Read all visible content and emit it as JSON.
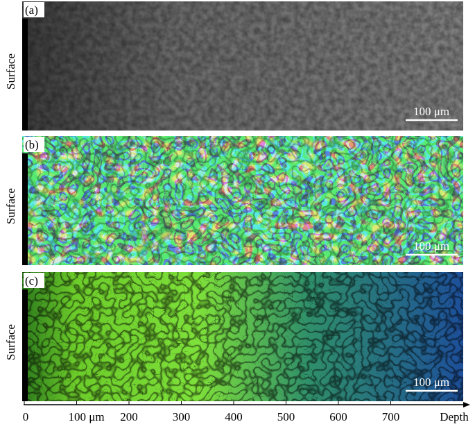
{
  "panels": [
    {
      "label": "(a)",
      "side_label": "Surface",
      "scale_bar": "100 μm"
    },
    {
      "label": "(b)",
      "side_label": "Surface",
      "scale_bar": "100 μm"
    },
    {
      "label": "(c)",
      "side_label": "Surface",
      "scale_bar": "100 μm"
    }
  ],
  "axis": {
    "tick_labels": [
      "0",
      "100 μm",
      "200",
      "300",
      "400",
      "500",
      "600",
      "700"
    ],
    "end_label": "Depth"
  }
}
